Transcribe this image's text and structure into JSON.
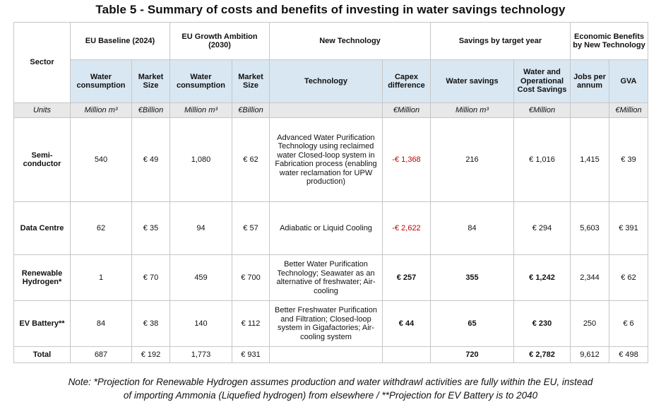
{
  "title": "Table 5 - Summary of costs and benefits of investing in water savings technology",
  "header_groups": {
    "sector": "Sector",
    "eu_baseline": "EU Baseline (2024)",
    "eu_growth": "EU Growth Ambition (2030)",
    "new_tech": "New Technology",
    "savings": "Savings by target year",
    "economic": "Economic Benefits by New Technology"
  },
  "subheaders": {
    "water_consumption_1": "Water consumption",
    "market_size_1": "Market Size",
    "water_consumption_2": "Water consumption",
    "market_size_2": "Market Size",
    "technology": "Technology",
    "capex_difference": "Capex difference",
    "water_savings": "Water savings",
    "water_op_cost_savings": "Water and Operational Cost Savings",
    "jobs_per_annum": "Jobs per annum",
    "gva": "GVA"
  },
  "units": {
    "label": "Units",
    "water_consumption_1": "Million m³",
    "market_size_1": "€Billion",
    "water_consumption_2": "Million m³",
    "market_size_2": "€Billion",
    "technology": "",
    "capex_difference": "€Million",
    "water_savings": "Million m³",
    "water_op_cost_savings": "€Million",
    "jobs_per_annum": "",
    "gva": "€Million"
  },
  "rows": [
    {
      "sector": "Semi-conductor",
      "water_consumption_1": "540",
      "market_size_1": "€ 49",
      "water_consumption_2": "1,080",
      "market_size_2": "€ 62",
      "technology": "Advanced Water Purification Technology using reclaimed water Closed-loop system in Fabrication process (enabling water reclamation for UPW production)",
      "capex_difference": "-€ 1,368",
      "water_savings": "216",
      "water_op_cost_savings": "€ 1,016",
      "jobs_per_annum": "1,415",
      "gva": "€ 39"
    },
    {
      "sector": "Data Centre",
      "water_consumption_1": "62",
      "market_size_1": "€ 35",
      "water_consumption_2": "94",
      "market_size_2": "€ 57",
      "technology": "Adiabatic or Liquid Cooling",
      "capex_difference": "-€ 2,622",
      "water_savings": "84",
      "water_op_cost_savings": "€ 294",
      "jobs_per_annum": "5,603",
      "gva": "€ 391"
    },
    {
      "sector": "Renewable Hydrogen*",
      "water_consumption_1": "1",
      "market_size_1": "€ 70",
      "water_consumption_2": "459",
      "market_size_2": "€ 700",
      "technology": "Better Water Purification Technology; Seawater as an alternative of freshwater; Air-cooling",
      "capex_difference": "€ 257",
      "water_savings": "355",
      "water_op_cost_savings": "€ 1,242",
      "jobs_per_annum": "2,344",
      "gva": "€ 62"
    },
    {
      "sector": "EV Battery**",
      "water_consumption_1": "84",
      "market_size_1": "€ 38",
      "water_consumption_2": "140",
      "market_size_2": "€ 112",
      "technology": "Better Freshwater Purification and Filtration; Closed-loop system in Gigafactories; Air-cooling system",
      "capex_difference": "€ 44",
      "water_savings": "65",
      "water_op_cost_savings": "€ 230",
      "jobs_per_annum": "250",
      "gva": "€ 6"
    }
  ],
  "total": {
    "sector": "Total",
    "water_consumption_1": "687",
    "market_size_1": "€ 192",
    "water_consumption_2": "1,773",
    "market_size_2": "€ 931",
    "technology": "",
    "capex_difference": "",
    "water_savings": "720",
    "water_op_cost_savings": "€ 2,782",
    "jobs_per_annum": "9,612",
    "gva": "€ 498"
  },
  "note": {
    "line1": "Note: *Projection for Renewable Hydrogen assumes production and water withdrawl activities are fully within the EU, instead",
    "line2": "of importing Ammonia (Liquefied hydrogen) from elsewhere / **Projection for EV Battery is to 2040"
  },
  "colors": {
    "subheader_bg": "#d9e7f2",
    "units_bg": "#e8e8e8",
    "negative": "#c00000",
    "border": "#c6c6c6"
  }
}
